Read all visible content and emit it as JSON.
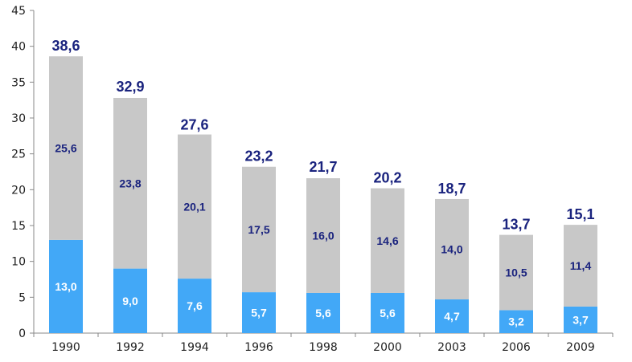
{
  "chart_data": {
    "type": "bar",
    "stacked": true,
    "categories": [
      "1990",
      "1992",
      "1994",
      "1996",
      "1998",
      "2000",
      "2003",
      "2006",
      "2009"
    ],
    "series": [
      {
        "values": [
          13.0,
          9.0,
          7.6,
          5.7,
          5.6,
          5.6,
          4.7,
          3.2,
          3.7
        ],
        "labels": [
          "13,0",
          "9,0",
          "7,6",
          "5,7",
          "5,6",
          "5,6",
          "4,7",
          "3,2",
          "3,7"
        ],
        "color": "#42a8f7",
        "label_color": "#ffffff"
      },
      {
        "values": [
          25.6,
          23.8,
          20.1,
          17.5,
          16.0,
          14.6,
          14.0,
          10.5,
          11.4
        ],
        "labels": [
          "25,6",
          "23,8",
          "20,1",
          "17,5",
          "16,0",
          "14,6",
          "14,0",
          "10,5",
          "11,4"
        ],
        "color": "#c8c8c8",
        "label_color": "#1a237e"
      }
    ],
    "totals": [
      38.6,
      32.9,
      27.6,
      23.2,
      21.7,
      20.2,
      18.7,
      13.7,
      15.1
    ],
    "total_labels": [
      "38,6",
      "32,9",
      "27,6",
      "23,2",
      "21,7",
      "20,2",
      "18,7",
      "13,7",
      "15,1"
    ],
    "total_label_color": "#1a237e",
    "ylim": [
      0,
      45
    ],
    "yticks": [
      0,
      5,
      10,
      15,
      20,
      25,
      30,
      35,
      40,
      45
    ],
    "ytick_labels": [
      "0",
      "5",
      "10",
      "15",
      "20",
      "25",
      "30",
      "35",
      "40",
      "45"
    ],
    "grid": false,
    "legend": "none",
    "title": "",
    "xlabel": "",
    "ylabel": ""
  }
}
